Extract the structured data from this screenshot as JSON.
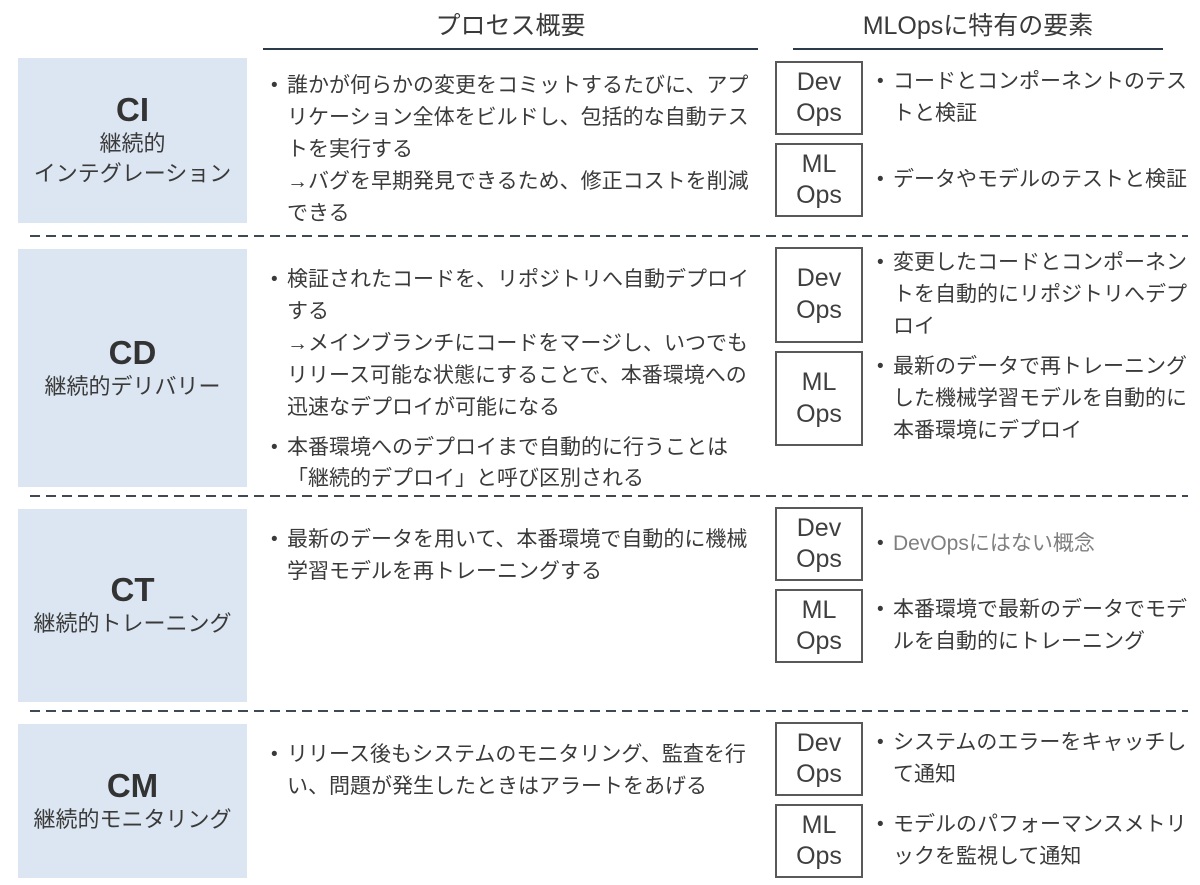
{
  "header": {
    "process_title": "プロセス概要",
    "mlops_title": "MLOpsに特有の要素"
  },
  "glyphs": {
    "bullet": "•"
  },
  "ops_box": {
    "devops": "Dev\nOps",
    "mlops": "ML\nOps"
  },
  "colors": {
    "label_bg": "#dce6f2",
    "header_underline": "#2c3a4a",
    "box_border": "#595959",
    "text": "#3a3a3a",
    "muted_text": "#7f7f7f"
  },
  "rows": [
    {
      "acronym": "CI",
      "name": "継続的\nインテグレーション",
      "process_bullets": [
        "誰かが何らかの変更をコミットするたびに、アプリケーション全体をビルドし、包括的な自動テストを実行する\n→バグを早期発見できるため、修正コストを削減できる"
      ],
      "mlops_items": [
        {
          "box": "DevOps",
          "text": "コードとコンポーネントのテストと検証"
        },
        {
          "box": "MLOps",
          "text": "データやモデルのテストと検証"
        }
      ]
    },
    {
      "acronym": "CD",
      "name": "継続的デリバリー",
      "process_bullets": [
        "検証されたコードを、リポジトリへ自動デプロイする\n→メインブランチにコードをマージし、いつでもリリース可能な状態にすることで、本番環境への迅速なデプロイが可能になる",
        "本番環境へのデプロイまで自動的に行うことは「継続的デプロイ」と呼び区別される"
      ],
      "mlops_items": [
        {
          "box": "DevOps",
          "text": "変更したコードとコンポーネントを自動的にリポジトリへデプロイ"
        },
        {
          "box": "MLOps",
          "text": "最新のデータで再トレーニングした機械学習モデルを自動的に本番環境にデプロイ"
        }
      ]
    },
    {
      "acronym": "CT",
      "name": "継続的トレーニング",
      "process_bullets": [
        "最新のデータを用いて、本番環境で自動的に機械学習モデルを再トレーニングする"
      ],
      "mlops_items": [
        {
          "box": "DevOps",
          "text": "DevOpsにはない概念"
        },
        {
          "box": "MLOps",
          "text": "本番環境で最新のデータでモデルを自動的にトレーニング"
        }
      ]
    },
    {
      "acronym": "CM",
      "name": "継続的モニタリング",
      "process_bullets": [
        "リリース後もシステムのモニタリング、監査を行い、問題が発生したときはアラートをあげる"
      ],
      "mlops_items": [
        {
          "box": "DevOps",
          "text": "システムのエラーをキャッチして通知"
        },
        {
          "box": "MLOps",
          "text": "モデルのパフォーマンスメトリックを監視して通知"
        }
      ]
    }
  ]
}
